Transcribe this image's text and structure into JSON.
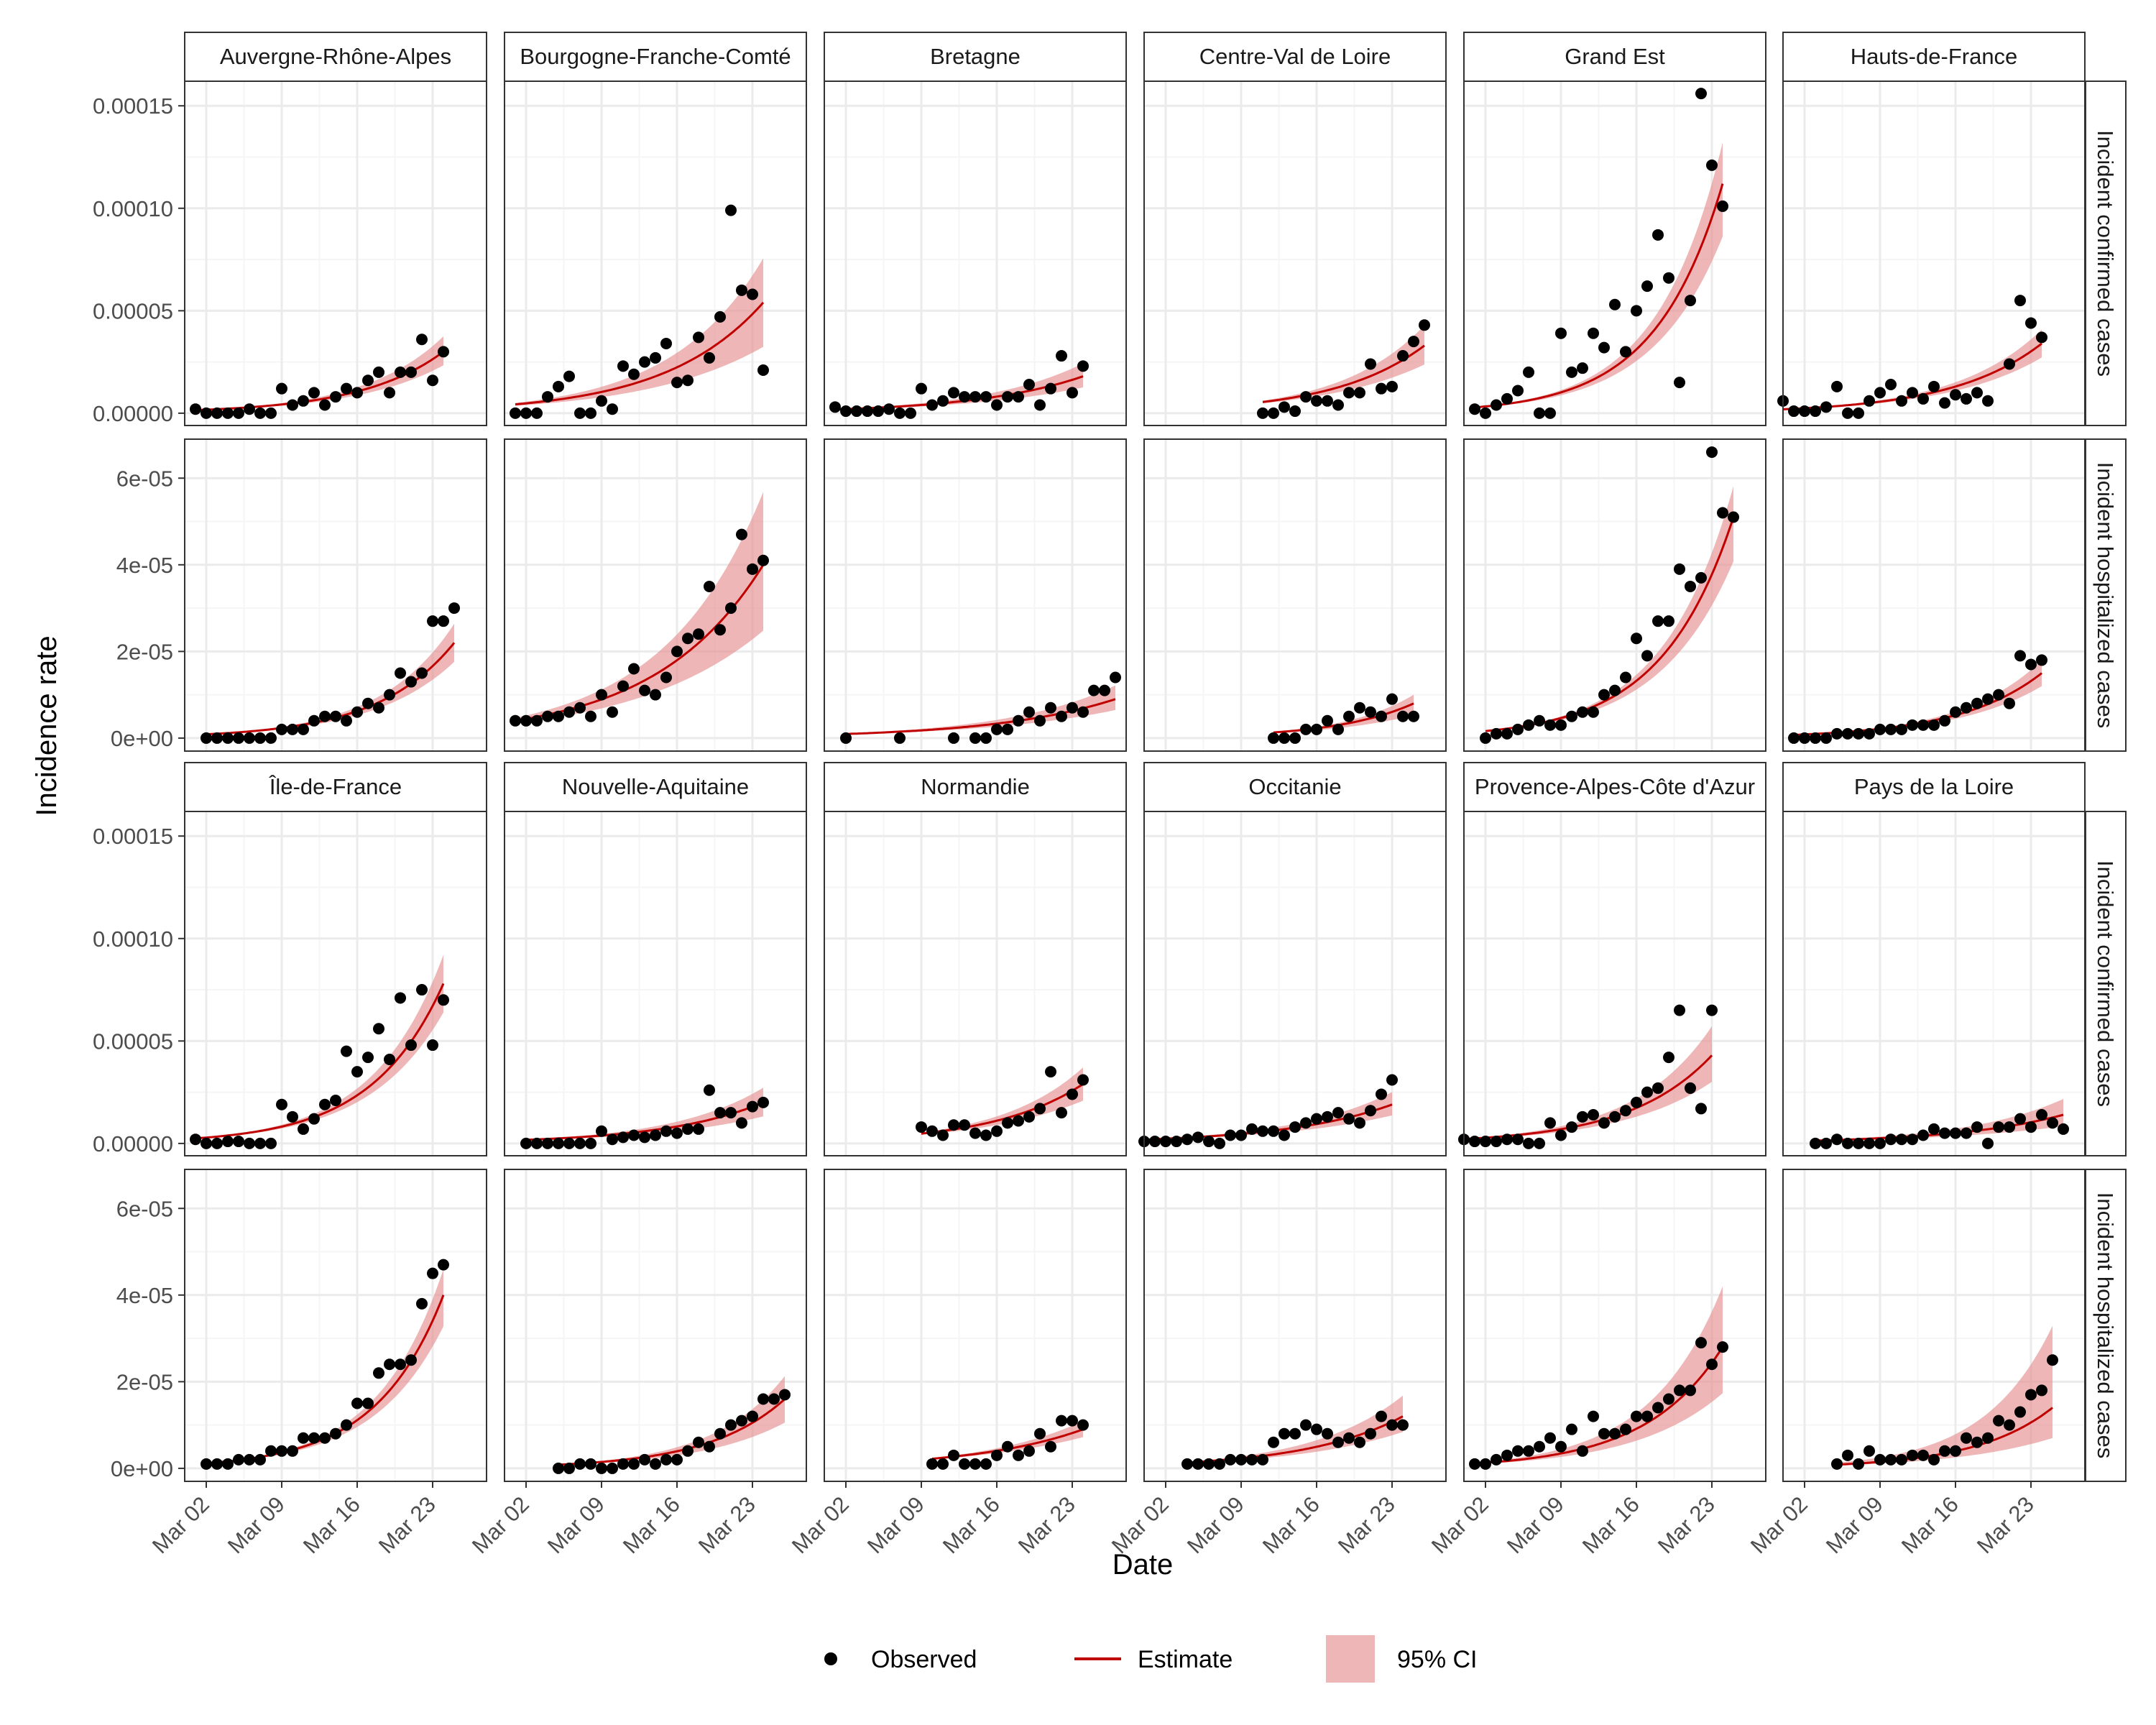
{
  "figure": {
    "xlabel": "Date",
    "ylabel": "Incidence rate",
    "x_tick_labels": [
      "Mar 02",
      "Mar 09",
      "Mar 16",
      "Mar 23"
    ],
    "legend": [
      {
        "key": "observed",
        "label": "Observed"
      },
      {
        "key": "estimate",
        "label": "Estimate"
      },
      {
        "key": "ci",
        "label": "95% CI"
      }
    ],
    "colors": {
      "observed": "#000000",
      "estimate": "#c00000",
      "ci": "#e58f8f",
      "grid_major": "#ebebeb",
      "grid_minor": "#f5f5f5",
      "strip_fill": "#ffffff",
      "panel_border": "#333333"
    }
  },
  "chart_data": {
    "type": "scatter",
    "title": "",
    "xlabel": "Date",
    "ylabel": "Incidence rate",
    "legend_position": "bottom",
    "grid": true,
    "x_range": [
      "2020-02-29",
      "2020-03-28"
    ],
    "x_ticks": [
      "2020-03-02",
      "2020-03-09",
      "2020-03-16",
      "2020-03-23"
    ],
    "row_facets": [
      "Incident confirmed cases",
      "Incident hospitalized cases"
    ],
    "column_facets": [
      [
        "Auvergne-Rhône-Alpes",
        "Bourgogne-Franche-Comté",
        "Bretagne",
        "Centre-Val de Loire",
        "Grand Est",
        "Hauts-de-France"
      ],
      [
        "Île-de-France",
        "Nouvelle-Aquitaine",
        "Normandie",
        "Occitanie",
        "Provence-Alpes-Côte d'Azur",
        "Pays de la Loire"
      ]
    ],
    "y_scales": {
      "Incident confirmed cases": {
        "ylim": [
          -6e-06,
          0.000162
        ],
        "ticks": [
          0,
          5e-05,
          0.0001,
          0.00015
        ],
        "tick_labels": [
          "0.00000",
          "0.00005",
          "0.00010",
          "0.00015"
        ]
      },
      "Incident hospitalized cases": {
        "ylim": [
          -3e-06,
          6.9e-05
        ],
        "ticks": [
          0,
          2e-05,
          4e-05,
          6e-05
        ],
        "tick_labels": [
          "0e+00",
          "2e-05",
          "4e-05",
          "6e-05"
        ]
      }
    },
    "series_unit": "one value per day; day 0 = the first date listed in each series; estimate curve exp(a + b*day) with 95% CI band from lo/hi multipliers",
    "regions": [
      {
        "name": "Auvergne-Rhône-Alpes",
        "confirmed": {
          "start": "2020-03-01",
          "observed": [
            2e-06,
            0,
            0,
            0,
            0,
            2e-06,
            0,
            0,
            1.2e-05,
            4e-06,
            6e-06,
            1e-05,
            4e-06,
            8e-06,
            1.2e-05,
            1e-05,
            1.6e-05,
            2e-05,
            1e-05,
            2e-05,
            2e-05,
            3.6e-05,
            1.6e-05,
            3e-05
          ],
          "est": {
            "end_value": 3e-05,
            "growth": 0.13,
            "ci_low": 0.78,
            "ci_high": 1.25
          }
        },
        "hospitalized": {
          "start": "2020-03-02",
          "observed": [
            0,
            0,
            0,
            0,
            0,
            0,
            0,
            2e-06,
            2e-06,
            2e-06,
            4e-06,
            5e-06,
            5e-06,
            4e-06,
            6e-06,
            8e-06,
            7e-06,
            1e-05,
            1.5e-05,
            1.3e-05,
            1.5e-05,
            2.7e-05,
            2.7e-05,
            3e-05
          ],
          "est": {
            "end_value": 2.2e-05,
            "growth": 0.14,
            "ci_low": 0.8,
            "ci_high": 1.2
          }
        }
      },
      {
        "name": "Bourgogne-Franche-Comté",
        "confirmed": {
          "start": "2020-03-01",
          "observed": [
            0,
            0,
            0,
            8e-06,
            1.3e-05,
            1.8e-05,
            0,
            0,
            6e-06,
            2e-06,
            2.3e-05,
            1.9e-05,
            2.5e-05,
            2.7e-05,
            3.4e-05,
            1.5e-05,
            1.6e-05,
            3.7e-05,
            2.7e-05,
            4.7e-05,
            9.9e-05,
            6e-05,
            5.8e-05,
            2.1e-05
          ],
          "est": {
            "end_value": 5.4e-05,
            "growth": 0.11,
            "ci_low": 0.6,
            "ci_high": 1.4
          }
        },
        "hospitalized": {
          "start": "2020-03-01",
          "observed": [
            4e-06,
            4e-06,
            4e-06,
            5e-06,
            5e-06,
            6e-06,
            7e-06,
            5e-06,
            1e-05,
            6e-06,
            1.2e-05,
            1.6e-05,
            1.1e-05,
            1e-05,
            1.4e-05,
            2e-05,
            2.3e-05,
            2.4e-05,
            3.5e-05,
            2.5e-05,
            3e-05,
            4.7e-05,
            3.9e-05,
            4.1e-05
          ],
          "est": {
            "end_value": 4e-05,
            "growth": 0.1,
            "ci_low": 0.62,
            "ci_high": 1.42
          }
        }
      },
      {
        "name": "Bretagne",
        "confirmed": {
          "start": "2020-03-01",
          "observed": [
            3e-06,
            1e-06,
            1e-06,
            1e-06,
            1e-06,
            2e-06,
            0,
            0,
            1.2e-05,
            4e-06,
            6e-06,
            1e-05,
            8e-06,
            8e-06,
            8e-06,
            4e-06,
            8e-06,
            8e-06,
            1.4e-05,
            4e-06,
            1.2e-05,
            2.8e-05,
            1e-05,
            2.3e-05
          ],
          "est": {
            "end_value": 1.8e-05,
            "growth": 0.1,
            "ci_low": 0.7,
            "ci_high": 1.35
          }
        },
        "hospitalized": {
          "start": "2020-03-02",
          "observed": [
            0,
            null,
            null,
            null,
            null,
            0,
            null,
            null,
            null,
            null,
            0,
            null,
            0,
            0,
            2e-06,
            2e-06,
            4e-06,
            6e-06,
            4e-06,
            7e-06,
            5e-06,
            7e-06,
            6e-06,
            1.1e-05,
            1.1e-05,
            1.4e-05
          ],
          "est": {
            "end_value": 9e-06,
            "growth": 0.09,
            "ci_low": 0.72,
            "ci_high": 1.35
          }
        }
      },
      {
        "name": "Centre-Val de Loire",
        "confirmed": {
          "start": "2020-03-11",
          "observed": [
            0,
            0,
            3e-06,
            1e-06,
            8e-06,
            6e-06,
            6e-06,
            4e-06,
            1e-05,
            1e-05,
            2.4e-05,
            1.2e-05,
            1.3e-05,
            2.8e-05,
            3.5e-05,
            4.3e-05
          ],
          "est": {
            "end_value": 3.3e-05,
            "growth": 0.12,
            "ci_low": 0.72,
            "ci_high": 1.3
          }
        },
        "hospitalized": {
          "start": "2020-03-12",
          "observed": [
            0,
            0,
            0,
            2e-06,
            2e-06,
            4e-06,
            2e-06,
            5e-06,
            7e-06,
            6e-06,
            5e-06,
            9e-06,
            5e-06,
            5e-06
          ],
          "est": {
            "end_value": 8e-06,
            "growth": 0.14,
            "ci_low": 0.66,
            "ci_high": 1.25
          }
        }
      },
      {
        "name": "Grand Est",
        "confirmed": {
          "start": "2020-03-01",
          "observed": [
            2e-06,
            0,
            4e-06,
            7e-06,
            1.1e-05,
            2e-05,
            0,
            0,
            3.9e-05,
            2e-05,
            2.2e-05,
            3.9e-05,
            3.2e-05,
            5.3e-05,
            3e-05,
            5e-05,
            6.2e-05,
            8.7e-05,
            6.6e-05,
            1.5e-05,
            5.5e-05,
            0.000156,
            0.000121,
            0.000101
          ],
          "est": {
            "end_value": 0.000112,
            "growth": 0.16,
            "ci_low": 0.77,
            "ci_high": 1.18
          }
        },
        "hospitalized": {
          "start": "2020-03-02",
          "observed": [
            0,
            1e-06,
            1e-06,
            2e-06,
            3e-06,
            4e-06,
            3e-06,
            3e-06,
            5e-06,
            6e-06,
            6e-06,
            1e-05,
            1.1e-05,
            1.4e-05,
            2.3e-05,
            1.9e-05,
            2.7e-05,
            2.7e-05,
            3.9e-05,
            3.5e-05,
            3.7e-05,
            6.6e-05,
            5.2e-05,
            5.1e-05
          ],
          "est": {
            "end_value": 5.1e-05,
            "growth": 0.15,
            "ci_low": 0.8,
            "ci_high": 1.14
          }
        }
      },
      {
        "name": "Hauts-de-France",
        "confirmed": {
          "start": "2020-02-29",
          "observed": [
            6e-06,
            1e-06,
            1e-06,
            1e-06,
            3e-06,
            1.3e-05,
            0,
            0,
            6e-06,
            1e-05,
            1.4e-05,
            6e-06,
            1e-05,
            7e-06,
            1.3e-05,
            5e-06,
            9e-06,
            7e-06,
            1e-05,
            6e-06,
            null,
            2.4e-05,
            5.5e-05,
            4.4e-05,
            3.7e-05
          ],
          "est": {
            "end_value": 3.4e-05,
            "growth": 0.12,
            "ci_low": 0.8,
            "ci_high": 1.2
          }
        },
        "hospitalized": {
          "start": "2020-03-01",
          "observed": [
            0,
            0,
            0,
            0,
            1e-06,
            1e-06,
            1e-06,
            1e-06,
            2e-06,
            2e-06,
            2e-06,
            3e-06,
            3e-06,
            3e-06,
            4e-06,
            6e-06,
            7e-06,
            8e-06,
            9e-06,
            1e-05,
            8e-06,
            1.9e-05,
            1.7e-05,
            1.8e-05
          ],
          "est": {
            "end_value": 1.5e-05,
            "growth": 0.13,
            "ci_low": 0.8,
            "ci_high": 1.2
          }
        }
      },
      {
        "name": "Île-de-France",
        "confirmed": {
          "start": "2020-03-01",
          "observed": [
            2e-06,
            0,
            0,
            1e-06,
            1e-06,
            0,
            0,
            0,
            1.9e-05,
            1.3e-05,
            7e-06,
            1.2e-05,
            1.9e-05,
            2.1e-05,
            4.5e-05,
            3.5e-05,
            4.2e-05,
            5.6e-05,
            4.1e-05,
            7.1e-05,
            4.8e-05,
            7.5e-05,
            4.8e-05,
            7e-05
          ],
          "est": {
            "end_value": 7.8e-05,
            "growth": 0.15,
            "ci_low": 0.82,
            "ci_high": 1.18
          }
        },
        "hospitalized": {
          "start": "2020-03-02",
          "observed": [
            1e-06,
            1e-06,
            1e-06,
            2e-06,
            2e-06,
            2e-06,
            4e-06,
            4e-06,
            4e-06,
            7e-06,
            7e-06,
            7e-06,
            8e-06,
            1e-05,
            1.5e-05,
            1.5e-05,
            2.2e-05,
            2.4e-05,
            2.4e-05,
            2.5e-05,
            3.8e-05,
            4.5e-05,
            4.7e-05
          ],
          "est": {
            "end_value": 4e-05,
            "growth": 0.16,
            "ci_low": 0.82,
            "ci_high": 1.15
          }
        }
      },
      {
        "name": "Nouvelle-Aquitaine",
        "confirmed": {
          "start": "2020-03-02",
          "observed": [
            0,
            0,
            0,
            0,
            0,
            0,
            0,
            6e-06,
            2e-06,
            3e-06,
            4e-06,
            3e-06,
            4e-06,
            6e-06,
            5e-06,
            7e-06,
            7e-06,
            2.6e-05,
            1.5e-05,
            1.5e-05,
            1e-05,
            1.8e-05,
            2e-05
          ],
          "est": {
            "end_value": 2e-05,
            "growth": 0.11,
            "ci_low": 0.66,
            "ci_high": 1.36
          }
        },
        "hospitalized": {
          "start": "2020-03-05",
          "observed": [
            0,
            0,
            1e-06,
            1e-06,
            0,
            0,
            1e-06,
            1e-06,
            2e-06,
            1e-06,
            2e-06,
            2e-06,
            4e-06,
            6e-06,
            5e-06,
            8e-06,
            1e-05,
            1.1e-05,
            1.2e-05,
            1.6e-05,
            1.6e-05,
            1.7e-05
          ],
          "est": {
            "end_value": 1.6e-05,
            "growth": 0.14,
            "ci_low": 0.66,
            "ci_high": 1.33
          }
        }
      },
      {
        "name": "Normandie",
        "confirmed": {
          "start": "2020-03-09",
          "observed": [
            8e-06,
            6e-06,
            4e-06,
            9e-06,
            9e-06,
            5e-06,
            4e-06,
            6e-06,
            1e-05,
            1.1e-05,
            1.3e-05,
            1.7e-05,
            3.5e-05,
            1.5e-05,
            2.4e-05,
            3.1e-05
          ],
          "est": {
            "end_value": 2.9e-05,
            "growth": 0.12,
            "ci_low": 0.72,
            "ci_high": 1.28
          }
        },
        "hospitalized": {
          "start": "2020-03-10",
          "observed": [
            1e-06,
            1e-06,
            3e-06,
            1e-06,
            1e-06,
            1e-06,
            3e-06,
            5e-06,
            3e-06,
            4e-06,
            8e-06,
            5e-06,
            1.1e-05,
            1.1e-05,
            1e-05
          ],
          "est": {
            "end_value": 9e-06,
            "growth": 0.1,
            "ci_low": 0.8,
            "ci_high": 1.22
          }
        }
      },
      {
        "name": "Occitanie",
        "confirmed": {
          "start": "2020-02-29",
          "observed": [
            1e-06,
            1e-06,
            1e-06,
            1e-06,
            2e-06,
            3e-06,
            1e-06,
            0,
            4e-06,
            4e-06,
            7e-06,
            6e-06,
            6e-06,
            4e-06,
            8e-06,
            1e-05,
            1.2e-05,
            1.3e-05,
            1.5e-05,
            1.2e-05,
            1e-05,
            1.6e-05,
            2.4e-05,
            3.1e-05
          ],
          "est": {
            "end_value": 1.9e-05,
            "growth": 0.1,
            "ci_low": 0.72,
            "ci_high": 1.32
          }
        },
        "hospitalized": {
          "start": "2020-03-04",
          "observed": [
            1e-06,
            1e-06,
            1e-06,
            1e-06,
            2e-06,
            2e-06,
            2e-06,
            2e-06,
            6e-06,
            8e-06,
            8e-06,
            1e-05,
            9e-06,
            8e-06,
            6e-06,
            7e-06,
            6e-06,
            8e-06,
            1.2e-05,
            1e-05,
            1e-05
          ],
          "est": {
            "end_value": 1.2e-05,
            "growth": 0.11,
            "ci_low": 0.7,
            "ci_high": 1.4
          }
        }
      },
      {
        "name": "Provence-Alpes-Côte d'Azur",
        "confirmed": {
          "start": "2020-02-29",
          "observed": [
            2e-06,
            1e-06,
            1e-06,
            1e-06,
            2e-06,
            2e-06,
            0,
            0,
            1e-05,
            4e-06,
            8e-06,
            1.3e-05,
            1.4e-05,
            1e-05,
            1.3e-05,
            1.6e-05,
            2e-05,
            2.5e-05,
            2.7e-05,
            4.2e-05,
            6.5e-05,
            2.7e-05,
            1.7e-05,
            6.5e-05
          ],
          "est": {
            "end_value": 4.3e-05,
            "growth": 0.13,
            "ci_low": 0.7,
            "ci_high": 1.33
          }
        },
        "hospitalized": {
          "start": "2020-03-01",
          "observed": [
            1e-06,
            1e-06,
            2e-06,
            3e-06,
            4e-06,
            4e-06,
            5e-06,
            7e-06,
            5e-06,
            9e-06,
            4e-06,
            1.2e-05,
            8e-06,
            8e-06,
            9e-06,
            1.2e-05,
            1.2e-05,
            1.4e-05,
            1.6e-05,
            1.8e-05,
            1.8e-05,
            2.9e-05,
            2.4e-05,
            2.8e-05
          ],
          "est": {
            "end_value": 2.8e-05,
            "growth": 0.14,
            "ci_low": 0.62,
            "ci_high": 1.5
          }
        }
      },
      {
        "name": "Pays de la Loire",
        "confirmed": {
          "start": "2020-03-03",
          "observed": [
            0,
            0,
            2e-06,
            0,
            0,
            0,
            0,
            2e-06,
            2e-06,
            2e-06,
            4e-06,
            7e-06,
            5e-06,
            5e-06,
            5e-06,
            8e-06,
            0,
            8e-06,
            8e-06,
            1.2e-05,
            8e-06,
            1.4e-05,
            1e-05,
            7e-06
          ],
          "est": {
            "end_value": 1.4e-05,
            "growth": 0.1,
            "ci_low": 0.6,
            "ci_high": 1.55
          }
        },
        "hospitalized": {
          "start": "2020-03-05",
          "observed": [
            1e-06,
            3e-06,
            1e-06,
            4e-06,
            2e-06,
            2e-06,
            2e-06,
            3e-06,
            3e-06,
            2e-06,
            4e-06,
            4e-06,
            7e-06,
            6e-06,
            7e-06,
            1.1e-05,
            1e-05,
            1.3e-05,
            1.7e-05,
            1.8e-05,
            2.5e-05
          ],
          "est": {
            "end_value": 1.4e-05,
            "growth": 0.14,
            "ci_low": 0.5,
            "ci_high": 2.35
          }
        }
      }
    ]
  }
}
